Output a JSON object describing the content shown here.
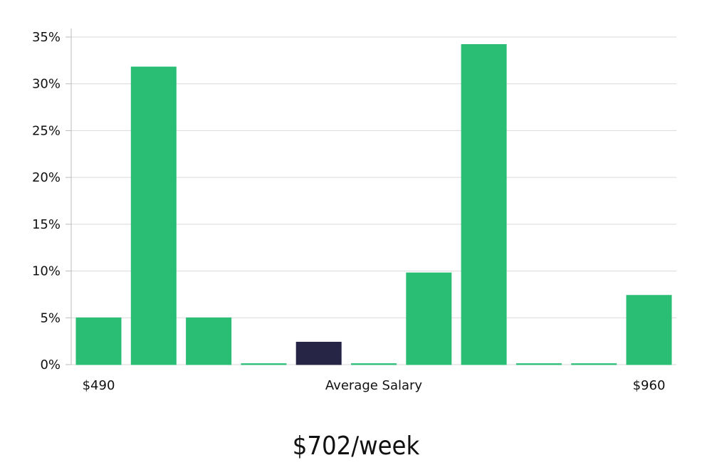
{
  "chart_data": {
    "type": "bar",
    "title": "",
    "xlabel": "Average Salary",
    "ylabel": "",
    "ylim": [
      0,
      35
    ],
    "y_ticks": [
      0,
      5,
      10,
      15,
      20,
      25,
      30,
      35
    ],
    "y_tick_format": "percent",
    "grid": true,
    "x_edge_labels": {
      "left": "$490",
      "right": "$960"
    },
    "values": [
      5.0,
      31.8,
      5.0,
      0.1,
      2.4,
      0.1,
      9.8,
      34.2,
      0.1,
      0.1,
      7.4
    ],
    "highlight_index": 4,
    "colors": {
      "bar": "#2abd74",
      "highlight": "#272546",
      "grid": "#d9d9d9",
      "axis": "#bbbbbb"
    }
  },
  "salary_value": "$702/week"
}
